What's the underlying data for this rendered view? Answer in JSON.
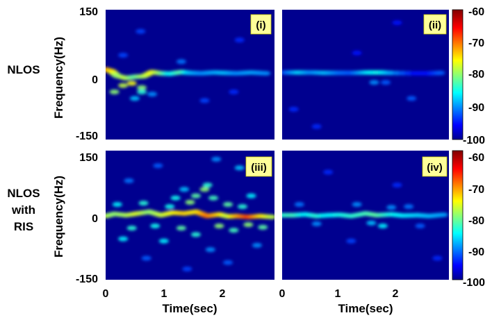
{
  "chart_data": {
    "type": "heatmap",
    "rows": [
      {
        "label_lines": [
          "NLOS"
        ],
        "ylabel": "Frequency(Hz)",
        "yticks": [
          "150",
          "0",
          "-150"
        ]
      },
      {
        "label_lines": [
          "NLOS",
          "with",
          "RIS"
        ],
        "ylabel": "Frequency(Hz)",
        "yticks": [
          "150",
          "0",
          "-150"
        ]
      }
    ],
    "panels": [
      {
        "id": "(i)",
        "row": 0,
        "col": 0
      },
      {
        "id": "(ii)",
        "row": 0,
        "col": 1
      },
      {
        "id": "(iii)",
        "row": 1,
        "col": 0
      },
      {
        "id": "(iv)",
        "row": 1,
        "col": 1
      }
    ],
    "ylim": [
      -150,
      150
    ],
    "xlim": [
      0,
      2.9
    ],
    "xlabel": "Time(sec)",
    "xticks": [
      "0",
      "1",
      "2"
    ],
    "colorbar": {
      "ticks": [
        "-60",
        "-70",
        "-80",
        "-90",
        "-100"
      ],
      "range": [
        -100,
        -60
      ],
      "colormap": "jet"
    },
    "ridges": [
      [
        [
          0.0,
          12,
          -72
        ],
        [
          0.1,
          8,
          -74
        ],
        [
          0.2,
          -3,
          -80
        ],
        [
          0.35,
          -8,
          -78
        ],
        [
          0.5,
          -5,
          -82
        ],
        [
          0.65,
          -4,
          -79
        ],
        [
          0.8,
          6,
          -76
        ],
        [
          0.95,
          3,
          -80
        ],
        [
          1.1,
          2,
          -86
        ],
        [
          1.3,
          6,
          -82
        ],
        [
          1.45,
          4,
          -88
        ],
        [
          1.65,
          3,
          -90
        ],
        [
          1.85,
          5,
          -89
        ],
        [
          2.05,
          4,
          -88
        ],
        [
          2.25,
          3,
          -90
        ],
        [
          2.5,
          5,
          -89
        ],
        [
          2.75,
          3,
          -90
        ]
      ],
      [
        [
          0.05,
          5,
          -92
        ],
        [
          0.3,
          5,
          -87
        ],
        [
          0.5,
          5,
          -90
        ],
        [
          0.75,
          4,
          -88
        ],
        [
          1.0,
          4,
          -91
        ],
        [
          1.2,
          4,
          -92
        ],
        [
          1.5,
          5,
          -86
        ],
        [
          1.7,
          5,
          -85
        ],
        [
          1.9,
          4,
          -89
        ],
        [
          2.3,
          3,
          -95
        ],
        [
          2.55,
          3,
          -95
        ],
        [
          2.75,
          4,
          -92
        ]
      ],
      [
        [
          0.0,
          -2,
          -78
        ],
        [
          0.15,
          3,
          -80
        ],
        [
          0.35,
          0,
          -79
        ],
        [
          0.55,
          4,
          -77
        ],
        [
          0.75,
          8,
          -80
        ],
        [
          0.95,
          0,
          -78
        ],
        [
          1.15,
          6,
          -76
        ],
        [
          1.35,
          4,
          -74
        ],
        [
          1.55,
          8,
          -75
        ],
        [
          1.75,
          -2,
          -70
        ],
        [
          1.95,
          2,
          -74
        ],
        [
          2.1,
          -3,
          -78
        ],
        [
          2.25,
          -2,
          -73
        ],
        [
          2.45,
          -4,
          -68
        ],
        [
          2.65,
          -2,
          -74
        ],
        [
          2.85,
          -4,
          -78
        ]
      ],
      [
        [
          0.0,
          0,
          -84
        ],
        [
          0.2,
          0,
          -83
        ],
        [
          0.4,
          2,
          -86
        ],
        [
          0.6,
          -2,
          -84
        ],
        [
          0.8,
          0,
          -86
        ],
        [
          1.0,
          1,
          -85
        ],
        [
          1.2,
          -2,
          -84
        ],
        [
          1.45,
          4,
          -83
        ],
        [
          1.65,
          0,
          -82
        ],
        [
          1.9,
          2,
          -85
        ],
        [
          2.1,
          -1,
          -86
        ],
        [
          2.35,
          0,
          -87
        ],
        [
          2.55,
          -2,
          -88
        ],
        [
          2.8,
          1,
          -89
        ]
      ]
    ],
    "clutter": [
      [
        [
          0.15,
          -40,
          -80
        ],
        [
          0.3,
          -25,
          -78
        ],
        [
          0.45,
          -20,
          -76
        ],
        [
          0.62,
          -30,
          -80
        ],
        [
          0.62,
          -40,
          -84
        ],
        [
          0.5,
          -55,
          -88
        ],
        [
          0.8,
          -45,
          -90
        ],
        [
          1.3,
          30,
          -91
        ],
        [
          0.6,
          100,
          -93
        ],
        [
          2.3,
          80,
          -94
        ],
        [
          1.7,
          -60,
          -93
        ],
        [
          2.2,
          -40,
          -94
        ],
        [
          0.3,
          45,
          -93
        ]
      ],
      [
        [
          1.6,
          -18,
          -90
        ],
        [
          1.8,
          -18,
          -92
        ],
        [
          2.25,
          -55,
          -92
        ],
        [
          0.2,
          -80,
          -94
        ],
        [
          1.3,
          50,
          -95
        ],
        [
          0.6,
          -120,
          -94
        ],
        [
          2.0,
          120,
          -95
        ]
      ],
      [
        [
          1.2,
          40,
          -85
        ],
        [
          1.35,
          60,
          -88
        ],
        [
          1.55,
          45,
          -82
        ],
        [
          1.7,
          60,
          -80
        ],
        [
          1.75,
          70,
          -84
        ],
        [
          1.85,
          40,
          -83
        ],
        [
          1.45,
          30,
          -80
        ],
        [
          2.1,
          25,
          -82
        ],
        [
          2.35,
          20,
          -84
        ],
        [
          2.5,
          45,
          -86
        ],
        [
          0.65,
          28,
          -84
        ],
        [
          0.45,
          -30,
          -84
        ],
        [
          0.85,
          -25,
          -85
        ],
        [
          1.3,
          -30,
          -82
        ],
        [
          1.55,
          -45,
          -84
        ],
        [
          1.95,
          -25,
          -80
        ],
        [
          2.2,
          -35,
          -83
        ],
        [
          2.45,
          -22,
          -80
        ],
        [
          2.7,
          -28,
          -82
        ],
        [
          0.3,
          -55,
          -86
        ],
        [
          1.0,
          -60,
          -86
        ],
        [
          1.8,
          -80,
          -90
        ],
        [
          2.3,
          110,
          -88
        ],
        [
          1.9,
          130,
          -90
        ],
        [
          0.9,
          115,
          -92
        ],
        [
          0.4,
          80,
          -91
        ],
        [
          2.1,
          -110,
          -92
        ],
        [
          1.4,
          -125,
          -93
        ],
        [
          0.7,
          -100,
          -92
        ],
        [
          2.6,
          -70,
          -90
        ],
        [
          1.1,
          20,
          -85
        ],
        [
          0.2,
          25,
          -86
        ]
      ],
      [
        [
          1.75,
          -25,
          -86
        ],
        [
          1.55,
          -18,
          -88
        ],
        [
          1.3,
          25,
          -90
        ],
        [
          1.9,
          18,
          -90
        ],
        [
          2.2,
          20,
          -91
        ],
        [
          0.6,
          -20,
          -90
        ],
        [
          0.3,
          25,
          -91
        ],
        [
          2.4,
          -25,
          -92
        ],
        [
          1.2,
          -60,
          -93
        ],
        [
          2.0,
          70,
          -94
        ],
        [
          0.8,
          100,
          -94
        ],
        [
          2.7,
          -100,
          -94
        ]
      ]
    ]
  }
}
